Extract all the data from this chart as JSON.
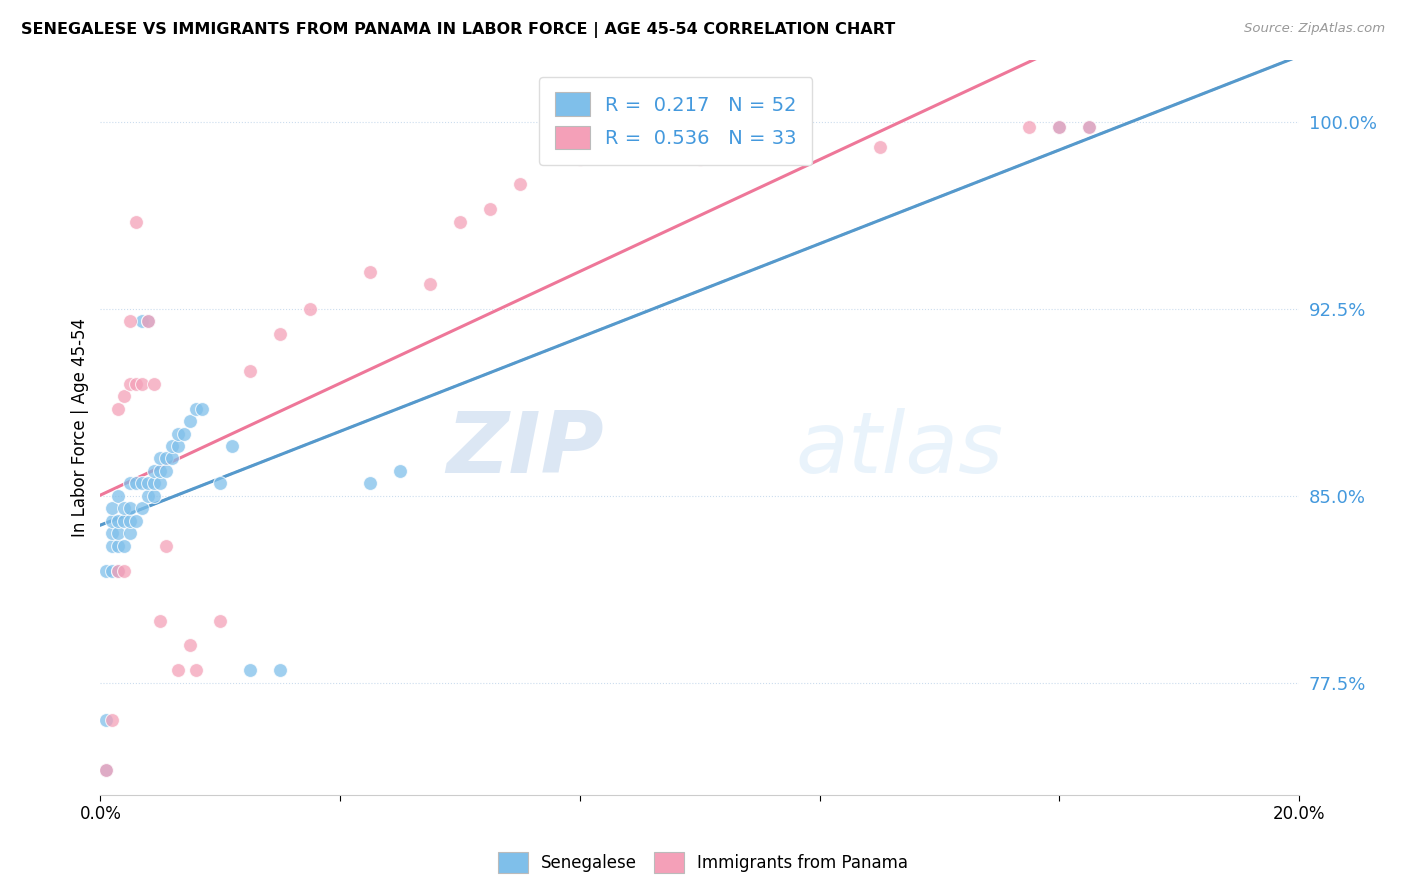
{
  "title": "SENEGALESE VS IMMIGRANTS FROM PANAMA IN LABOR FORCE | AGE 45-54 CORRELATION CHART",
  "source": "Source: ZipAtlas.com",
  "ylabel": "In Labor Force | Age 45-54",
  "xlim": [
    0.0,
    0.2
  ],
  "ylim": [
    0.73,
    1.025
  ],
  "yticks": [
    0.775,
    0.85,
    0.925,
    1.0
  ],
  "ytick_labels": [
    "77.5%",
    "85.0%",
    "92.5%",
    "100.0%"
  ],
  "xtick_positions": [
    0.0,
    0.04,
    0.08,
    0.12,
    0.16,
    0.2
  ],
  "xtick_labels": [
    "0.0%",
    "",
    "",
    "",
    "",
    "20.0%"
  ],
  "blue_color": "#7fbfea",
  "pink_color": "#f4a0b8",
  "blue_line_color": "#5599cc",
  "pink_line_color": "#ee7799",
  "dashed_line_color": "#aabbcc",
  "R_blue": 0.217,
  "N_blue": 52,
  "R_pink": 0.536,
  "N_pink": 33,
  "watermark_zip": "ZIP",
  "watermark_atlas": "atlas",
  "blue_scatter_x": [
    0.001,
    0.001,
    0.001,
    0.002,
    0.002,
    0.002,
    0.002,
    0.002,
    0.003,
    0.003,
    0.003,
    0.003,
    0.003,
    0.004,
    0.004,
    0.004,
    0.005,
    0.005,
    0.005,
    0.005,
    0.006,
    0.006,
    0.007,
    0.007,
    0.007,
    0.008,
    0.008,
    0.008,
    0.009,
    0.009,
    0.009,
    0.01,
    0.01,
    0.01,
    0.011,
    0.011,
    0.012,
    0.012,
    0.013,
    0.013,
    0.014,
    0.015,
    0.016,
    0.017,
    0.02,
    0.022,
    0.025,
    0.03,
    0.045,
    0.05,
    0.16,
    0.165
  ],
  "blue_scatter_y": [
    0.74,
    0.76,
    0.82,
    0.82,
    0.83,
    0.835,
    0.84,
    0.845,
    0.82,
    0.83,
    0.835,
    0.84,
    0.85,
    0.83,
    0.84,
    0.845,
    0.835,
    0.84,
    0.845,
    0.855,
    0.84,
    0.855,
    0.845,
    0.855,
    0.92,
    0.85,
    0.855,
    0.92,
    0.85,
    0.855,
    0.86,
    0.855,
    0.86,
    0.865,
    0.86,
    0.865,
    0.865,
    0.87,
    0.87,
    0.875,
    0.875,
    0.88,
    0.885,
    0.885,
    0.855,
    0.87,
    0.78,
    0.78,
    0.855,
    0.86,
    0.998,
    0.998
  ],
  "pink_scatter_x": [
    0.001,
    0.002,
    0.003,
    0.003,
    0.004,
    0.004,
    0.005,
    0.005,
    0.006,
    0.006,
    0.007,
    0.008,
    0.009,
    0.01,
    0.011,
    0.013,
    0.015,
    0.016,
    0.02,
    0.025,
    0.03,
    0.035,
    0.045,
    0.055,
    0.06,
    0.065,
    0.07,
    0.08,
    0.1,
    0.13,
    0.155,
    0.16,
    0.165
  ],
  "pink_scatter_y": [
    0.74,
    0.76,
    0.82,
    0.885,
    0.82,
    0.89,
    0.895,
    0.92,
    0.895,
    0.96,
    0.895,
    0.92,
    0.895,
    0.8,
    0.83,
    0.78,
    0.79,
    0.78,
    0.8,
    0.9,
    0.915,
    0.925,
    0.94,
    0.935,
    0.96,
    0.965,
    0.975,
    0.985,
    0.985,
    0.99,
    0.998,
    0.998,
    0.998
  ]
}
